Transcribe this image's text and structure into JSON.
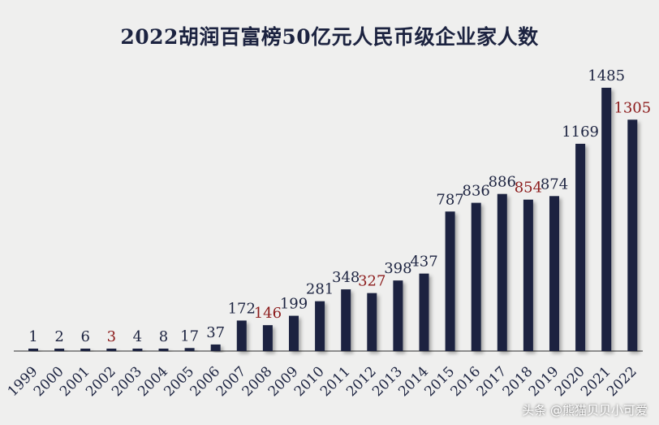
{
  "chart_data": {
    "type": "bar",
    "title": "2022胡润百富榜50亿元人民币级企业家人数",
    "xlabel": "",
    "ylabel": "",
    "ylim": [
      0,
      1485
    ],
    "grid": false,
    "categories": [
      "1999",
      "2000",
      "2001",
      "2002",
      "2003",
      "2004",
      "2005",
      "2006",
      "2007",
      "2008",
      "2009",
      "2010",
      "2011",
      "2012",
      "2013",
      "2014",
      "2015",
      "2016",
      "2017",
      "2018",
      "2019",
      "2020",
      "2021",
      "2022"
    ],
    "values": [
      1,
      2,
      6,
      3,
      4,
      8,
      17,
      37,
      172,
      146,
      199,
      281,
      348,
      327,
      398,
      437,
      787,
      836,
      886,
      854,
      874,
      1169,
      1485,
      1305
    ],
    "decreased": [
      false,
      false,
      false,
      true,
      false,
      false,
      false,
      false,
      false,
      true,
      false,
      false,
      false,
      true,
      false,
      false,
      false,
      false,
      false,
      true,
      false,
      false,
      false,
      true
    ],
    "colors": {
      "bar": "#1c2340",
      "label": "#1c2340",
      "decrease_label": "#8b1a1a",
      "axis": "#555555"
    }
  },
  "watermark": "头条 @熊猫贝贝小可爱"
}
